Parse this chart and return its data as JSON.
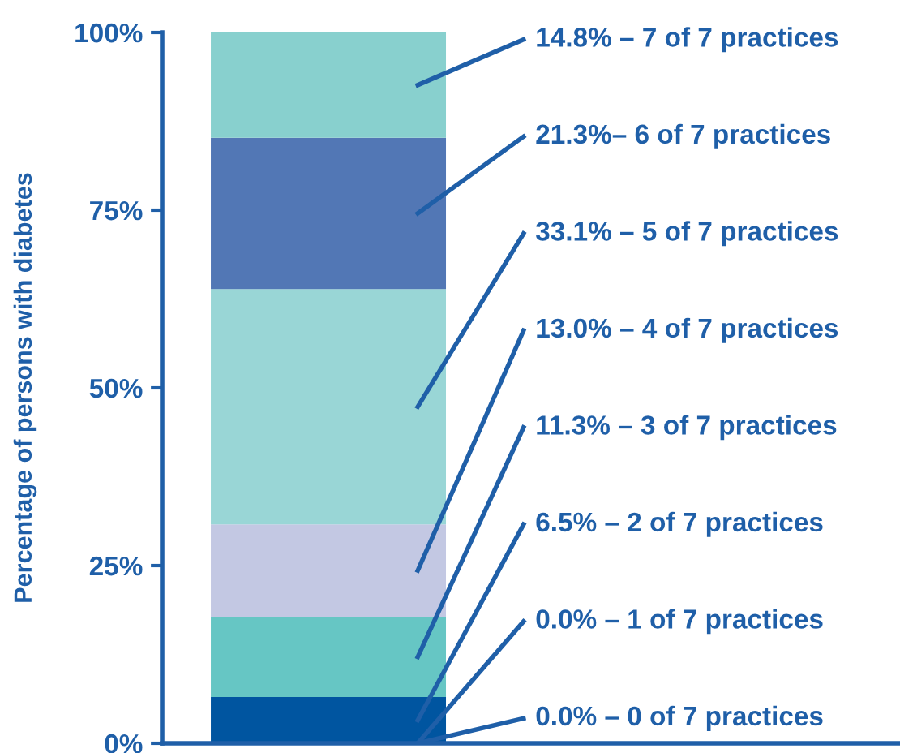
{
  "chart_data": {
    "type": "bar",
    "stacked": true,
    "ylabel": "Percentage of persons with diabetes",
    "categories": [
      null
    ],
    "ylim": [
      0,
      100
    ],
    "yticks": [
      {
        "value": 0,
        "label": "0%"
      },
      {
        "value": 25,
        "label": "25%"
      },
      {
        "value": 50,
        "label": "50%"
      },
      {
        "value": 75,
        "label": "75%"
      },
      {
        "value": 100,
        "label": "100%"
      }
    ],
    "series": [
      {
        "name": "0.0% – 0 of 7 practices",
        "values": [
          0.0
        ]
      },
      {
        "name": "0.0% – 1 of 7 practices",
        "values": [
          0.0
        ]
      },
      {
        "name": "6.5% – 2 of 7 practices",
        "color": "#0055a0",
        "values": [
          6.5
        ]
      },
      {
        "name": "11.3% – 3 of 7 practices",
        "color": "#66c6c4",
        "values": [
          11.3
        ]
      },
      {
        "name": "13.0% – 4 of 7 practices",
        "color": "#c3c8e3",
        "values": [
          13.0
        ]
      },
      {
        "name": "33.1% – 5 of 7 practices",
        "color": "#99d6d6",
        "values": [
          33.1
        ]
      },
      {
        "name": "21.3%– 6 of 7 practices",
        "color": "#5277b5",
        "values": [
          21.3
        ]
      },
      {
        "name": "14.8% – 7 of 7 practices",
        "color": "#88d0ce",
        "values": [
          14.8
        ]
      }
    ],
    "grid": false
  }
}
